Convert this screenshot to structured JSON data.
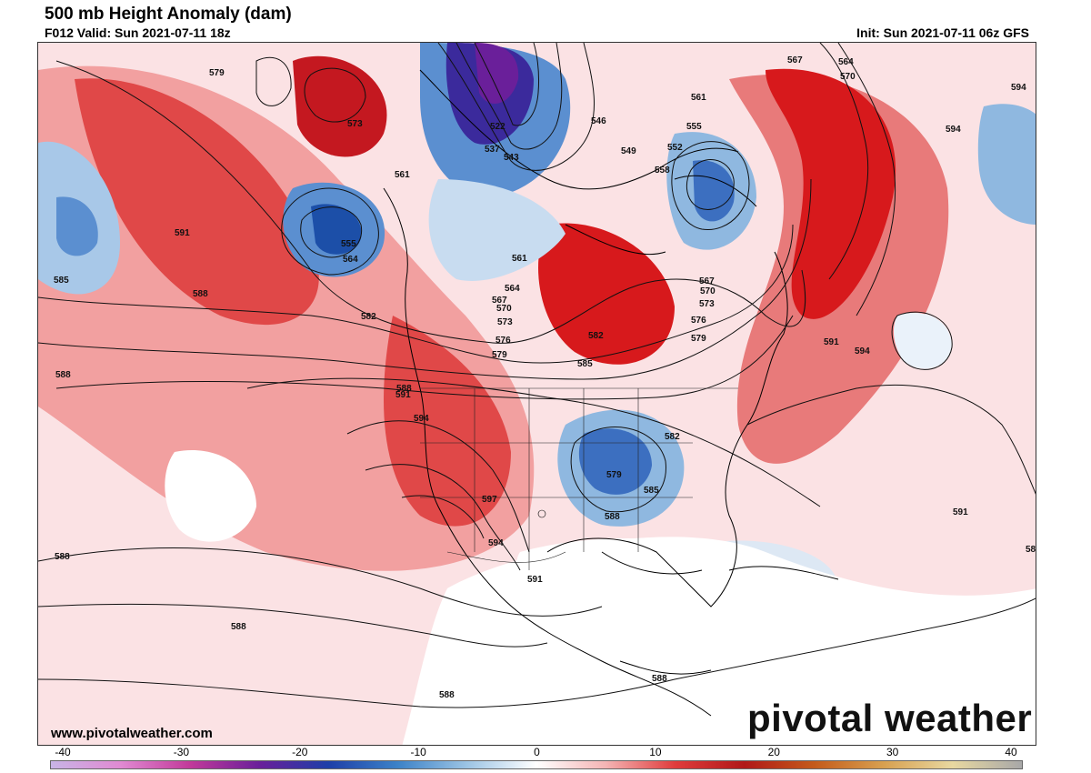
{
  "header": {
    "title": "500 mb Height Anomaly (dam)",
    "valid": "F012 Valid: Sun 2021-07-11 18z",
    "init": "Init: Sun 2021-07-11 06z GFS"
  },
  "footer": {
    "website": "www.pivotalweather.com",
    "brand": "pivotal weather"
  },
  "colorbar": {
    "ticks": [
      "-40",
      "-30",
      "-20",
      "-10",
      "0",
      "10",
      "20",
      "30",
      "40"
    ],
    "stops": [
      "#c8b4e6",
      "#e08ad2",
      "#c23a9a",
      "#6a1f9a",
      "#1e3fa8",
      "#3c82c8",
      "#9cc4e4",
      "#ffffff",
      "#f4b4b4",
      "#e03c3c",
      "#b01818",
      "#c45a1a",
      "#d8a050",
      "#e8d8a0",
      "#a8a8a8"
    ]
  },
  "map": {
    "colors": {
      "strong_positive": "#d7191c",
      "positive": "#f2a0a0",
      "weak_positive": "#fbe2e4",
      "strong_negative": "#1c4fa8",
      "negative": "#8fb8e0",
      "very_negative": "#6a1f9a",
      "contour": "#111111",
      "coastline": "#000000"
    },
    "contour_labels": [
      "579",
      "573",
      "561",
      "555",
      "564",
      "591",
      "585",
      "588",
      "522",
      "537",
      "543",
      "546",
      "549",
      "552",
      "558",
      "561",
      "555",
      "567",
      "564",
      "570",
      "594",
      "594",
      "582",
      "567",
      "570",
      "573",
      "576",
      "579",
      "582",
      "585",
      "591",
      "594",
      "597",
      "594",
      "591",
      "588",
      "579",
      "582",
      "585",
      "588",
      "561",
      "564",
      "567",
      "570",
      "573",
      "576",
      "579",
      "591",
      "594",
      "591",
      "588",
      "588",
      "588",
      "588",
      "588",
      "588"
    ]
  }
}
